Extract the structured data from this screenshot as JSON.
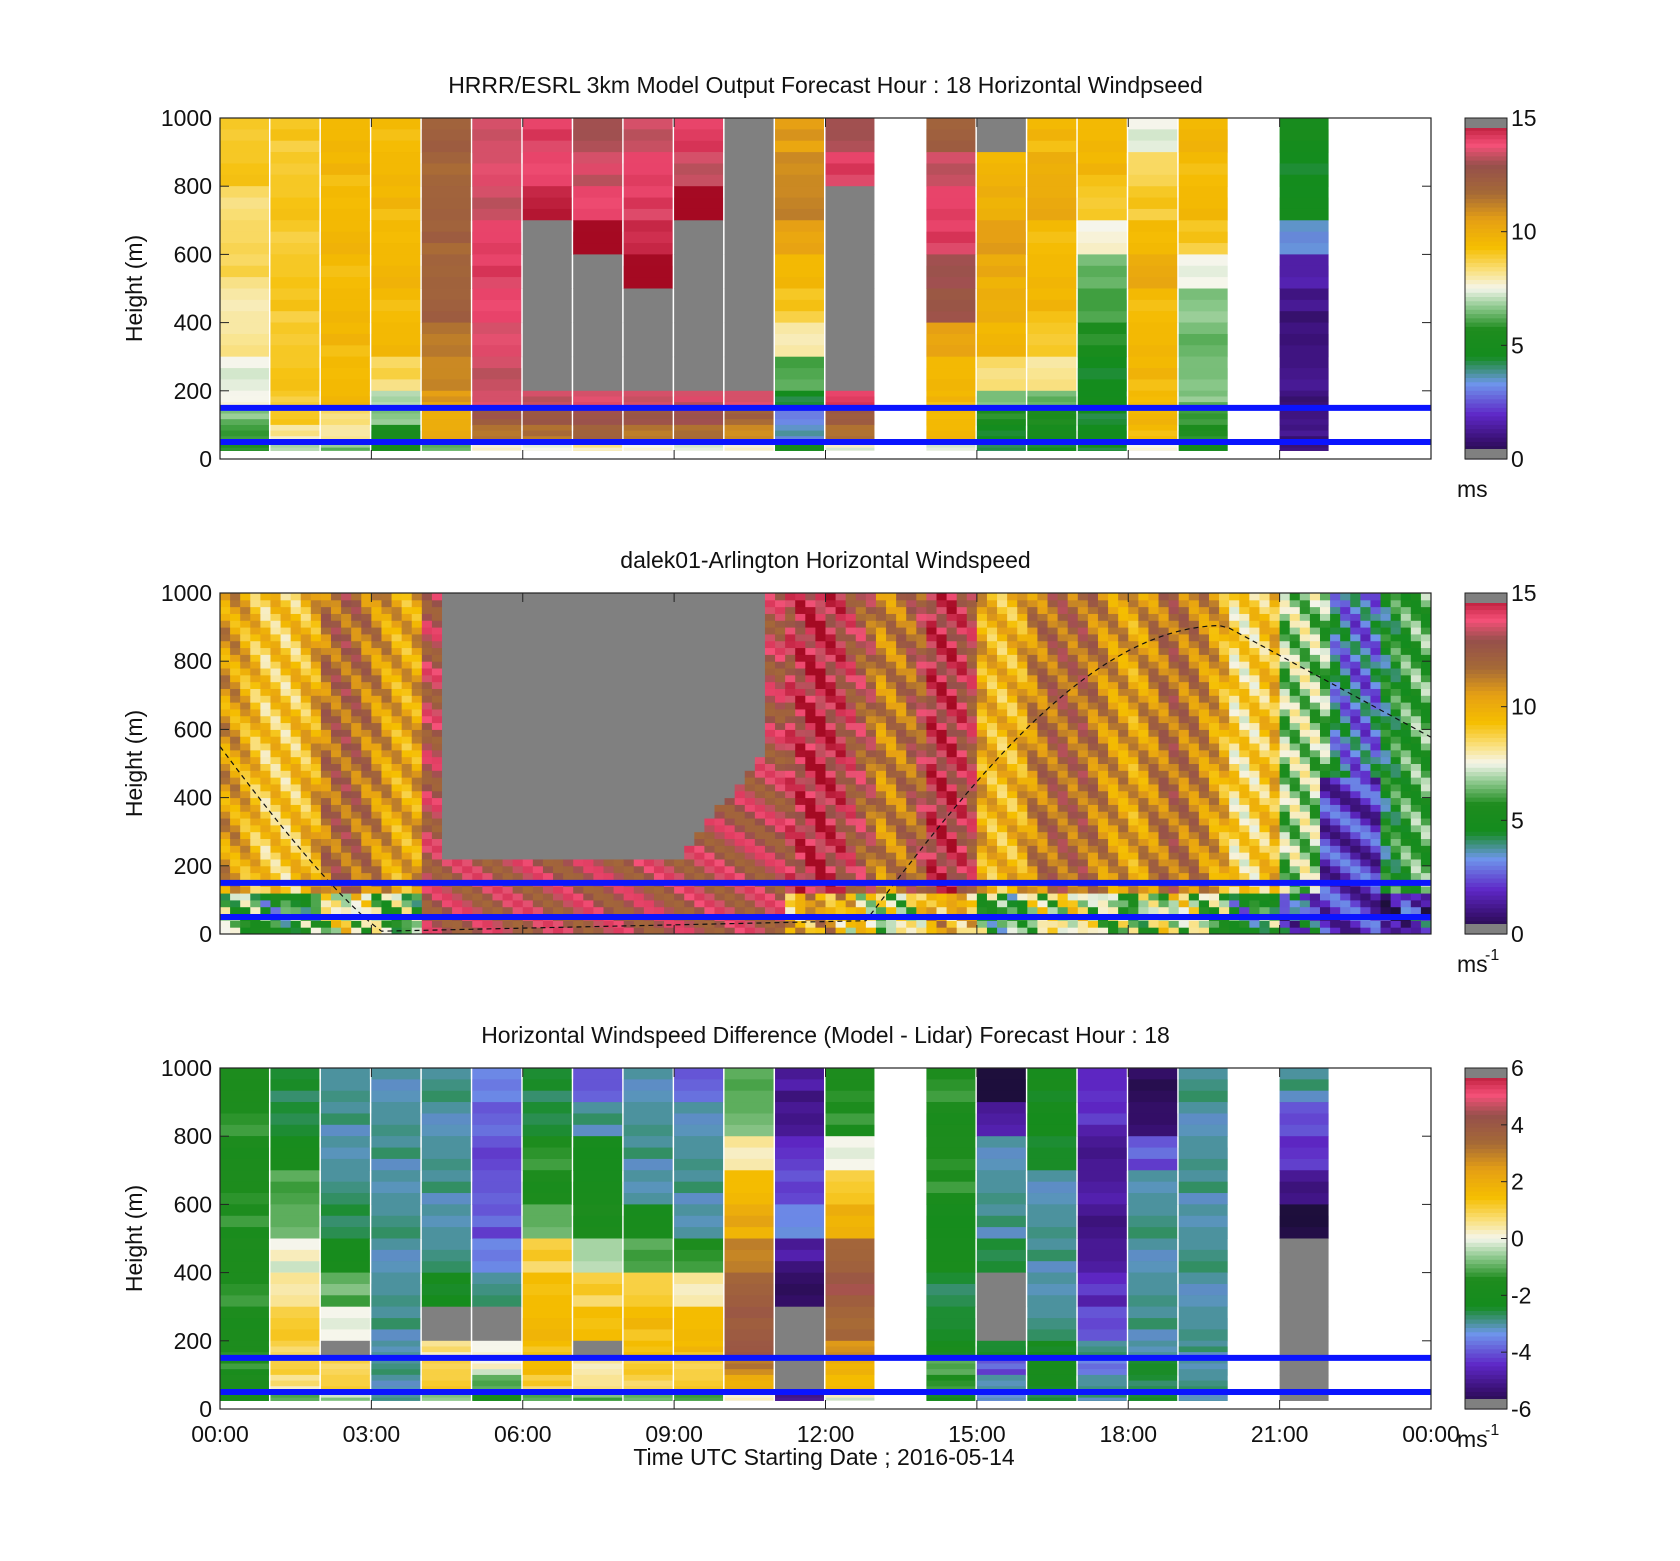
{
  "figure": {
    "xlabel": "Time UTC  Starting Date ; 2016-05-14",
    "xticks": [
      "00:00",
      "03:00",
      "06:00",
      "09:00",
      "12:00",
      "15:00",
      "18:00",
      "21:00",
      "00:00"
    ],
    "ylabel": "Height (m)",
    "yticks": [
      "0",
      "200",
      "400",
      "600",
      "800",
      "1000"
    ],
    "reference_lines_m": [
      150,
      50
    ],
    "reference_line_color": "#0a14ff"
  },
  "chart_data": [
    {
      "type": "heatmap",
      "title": "HRRR/ESRL 3km Model Output   Forecast Hour : 18 Horizontal Windpseed",
      "xlim_hours": [
        0,
        24
      ],
      "ylim": [
        0,
        1000
      ],
      "colorbar": {
        "ticks": [
          "15",
          "10",
          "5",
          "0"
        ],
        "unit": "ms",
        "unit_sup": "",
        "range": [
          0,
          15
        ]
      },
      "column_hours": [
        0,
        1,
        2,
        3,
        4,
        5,
        6,
        7,
        8,
        9,
        10,
        11,
        12,
        13,
        14,
        15,
        16,
        17,
        18,
        19,
        20,
        21,
        22,
        23
      ],
      "level_tops_m": [
        1000,
        900,
        800,
        700,
        600,
        500,
        400,
        300,
        200,
        150,
        100,
        50
      ],
      "values": [
        [
          9,
          9,
          9.5,
          9.5,
          12,
          13.5,
          14,
          13,
          13.5,
          14,
          null,
          10.5,
          13,
          null,
          12,
          null,
          9.5,
          9.5,
          7.5,
          9.5,
          null,
          5,
          null,
          null
        ],
        [
          9,
          9,
          9.5,
          9.5,
          12,
          13.5,
          14,
          13.5,
          14,
          13.5,
          null,
          11,
          14,
          null,
          13.5,
          9.5,
          10,
          9.5,
          8.5,
          9.5,
          null,
          4.5,
          null,
          null
        ],
        [
          8.5,
          9,
          9.5,
          9.5,
          12,
          13.5,
          14.5,
          14,
          14,
          15,
          null,
          11,
          null,
          null,
          14,
          10,
          10,
          9,
          9,
          9.5,
          null,
          4.5,
          null,
          null
        ],
        [
          8.5,
          9,
          9.5,
          9.5,
          12,
          14,
          null,
          15,
          14.5,
          null,
          null,
          10.5,
          null,
          null,
          14,
          10.5,
          9.5,
          7.5,
          9.5,
          9,
          null,
          3.5,
          null,
          null
        ],
        [
          8.5,
          9,
          9.5,
          9.5,
          12,
          14,
          null,
          null,
          15,
          null,
          null,
          9.5,
          null,
          null,
          13,
          10,
          9.5,
          6.5,
          10,
          7.5,
          null,
          1.5,
          null,
          null
        ],
        [
          8,
          9,
          9.5,
          9.5,
          12,
          14,
          null,
          null,
          null,
          null,
          null,
          9,
          null,
          null,
          12.5,
          10,
          9.5,
          6,
          9.5,
          6.5,
          null,
          1,
          null,
          null
        ],
        [
          8,
          9,
          9.5,
          9.5,
          11.5,
          13.5,
          null,
          null,
          null,
          null,
          null,
          8,
          null,
          null,
          10.5,
          9.5,
          9,
          5.5,
          9.5,
          6.5,
          null,
          1,
          null,
          null
        ],
        [
          7.5,
          9,
          9.5,
          8.5,
          11,
          13.5,
          null,
          null,
          null,
          null,
          null,
          6,
          null,
          null,
          9.5,
          8.5,
          8,
          4.5,
          9.5,
          6.5,
          null,
          1,
          null,
          null
        ],
        [
          7.5,
          9,
          9.5,
          7,
          10.5,
          13.5,
          13.5,
          13.5,
          13.5,
          13.5,
          13.5,
          4.5,
          14,
          null,
          9.5,
          6.5,
          6.5,
          4.5,
          9.5,
          6.5,
          null,
          1,
          null,
          null
        ],
        [
          6.5,
          9,
          8.5,
          6.5,
          10,
          12.5,
          12.5,
          13,
          12.5,
          13,
          12,
          3,
          12.5,
          null,
          9.5,
          5.5,
          5.5,
          4.5,
          9.5,
          6,
          null,
          1,
          null,
          null
        ],
        [
          6,
          8,
          8,
          5.5,
          10,
          11.5,
          11.5,
          12,
          11.5,
          11.5,
          11,
          3.5,
          11.5,
          null,
          9.5,
          4.5,
          5,
          4.5,
          9.5,
          5.5,
          null,
          1,
          null,
          null
        ],
        [
          5.5,
          7,
          6.5,
          5,
          6.5,
          7.5,
          7.5,
          8,
          7.5,
          7.5,
          7.5,
          5,
          7.5,
          null,
          7.5,
          4,
          4.5,
          4.5,
          7.5,
          5,
          null,
          1,
          null,
          null
        ]
      ]
    },
    {
      "type": "heatmap",
      "title": "dalek01-Arlington  Horizontal Windspeed",
      "xlim_hours": [
        0,
        24
      ],
      "ylim": [
        0,
        1000
      ],
      "colorbar": {
        "ticks": [
          "15",
          "10",
          "5",
          "0"
        ],
        "unit": "ms",
        "unit_sup": "-1",
        "range": [
          0,
          15
        ]
      },
      "description_values": {
        "background_by_hour": [
          9.5,
          10,
          11,
          11,
          13,
          null,
          null,
          null,
          null,
          null,
          13.5,
          13.5,
          13,
          12,
          13,
          10.5,
          11,
          11.5,
          11,
          10.5,
          9.5,
          6,
          4,
          5
        ],
        "no_data_region": {
          "start_hour": 4.3,
          "end_hour": 10.7,
          "bottom_m": 220,
          "dip_bottom_m": 200
        }
      },
      "overlay_curve": {
        "style": "dashed",
        "color": "#111111",
        "peak_hour": 19.9,
        "peak_m": 905,
        "zero_hours": [
          3.3,
          12.6
        ]
      }
    },
    {
      "type": "heatmap",
      "title": "Horizontal Windspeed Difference (Model - Lidar) Forecast Hour : 18",
      "xlim_hours": [
        0,
        24
      ],
      "ylim": [
        0,
        1000
      ],
      "colorbar": {
        "ticks": [
          "6",
          "4",
          "2",
          "0",
          "-2",
          "-4",
          "-6"
        ],
        "unit": "ms",
        "unit_sup": "-1",
        "range": [
          -6,
          6
        ]
      },
      "column_hours": [
        0,
        1,
        2,
        3,
        4,
        5,
        6,
        7,
        8,
        9,
        10,
        11,
        12,
        13,
        14,
        15,
        16,
        17,
        18,
        19,
        20,
        21,
        22,
        23
      ],
      "level_tops_m": [
        1000,
        900,
        800,
        700,
        600,
        500,
        400,
        300,
        200,
        150,
        100,
        50
      ],
      "values": [
        [
          -1.5,
          -2.5,
          -3,
          -3,
          -3,
          -3.5,
          -2.5,
          -4,
          -3,
          -4,
          -1,
          -5,
          -1.5,
          null,
          -1.5,
          -6,
          -2,
          -4.5,
          -5.5,
          -3,
          null,
          -3,
          null,
          null
        ],
        [
          -1.5,
          -2.5,
          -3,
          -3,
          -3,
          -4,
          -2.5,
          -3,
          -3,
          -3,
          -1,
          -5,
          -1.5,
          null,
          -1.5,
          -5,
          -2,
          -4.5,
          -5.5,
          -3,
          null,
          -4,
          null,
          null
        ],
        [
          -1.5,
          -2,
          -3,
          -3,
          -3,
          -4,
          -1.5,
          -2,
          -3,
          -3,
          0.5,
          -4.5,
          0,
          null,
          -1.5,
          -3,
          -2.5,
          -5,
          -4,
          -3,
          null,
          -4.5,
          null,
          null
        ],
        [
          -1.5,
          -1,
          -3,
          -3,
          -3,
          -4,
          -1.5,
          -2,
          -3,
          -3,
          1.5,
          -4,
          1,
          null,
          -1.5,
          -3,
          -3,
          -5,
          -3,
          -3,
          null,
          -5,
          null,
          null
        ],
        [
          -1.5,
          -1,
          -2.5,
          -3,
          -3,
          -4,
          -1,
          -1.5,
          -2,
          -3,
          2,
          -3.5,
          2,
          null,
          -2,
          -3,
          -3,
          -5,
          -3,
          -3,
          null,
          -6,
          null,
          null
        ],
        [
          -1.5,
          0,
          -2,
          -3,
          -3,
          -3.5,
          1,
          -0.5,
          -1,
          -1.5,
          3,
          -5,
          3.5,
          null,
          -2,
          -2.5,
          -3,
          -5,
          -3,
          -3,
          null,
          null,
          null,
          null
        ],
        [
          -1.5,
          0.5,
          -1,
          -3,
          -2,
          -3,
          1.5,
          1,
          1,
          0.5,
          3.5,
          -5.5,
          4,
          null,
          -2.5,
          null,
          -3,
          -4.5,
          -3,
          -3,
          null,
          null,
          null,
          null
        ],
        [
          -1.5,
          1,
          0,
          -3,
          null,
          null,
          1.5,
          1.5,
          1.5,
          1.5,
          4,
          null,
          3.5,
          null,
          -2.5,
          null,
          -3,
          -4,
          -3,
          -3,
          null,
          null,
          null,
          null
        ],
        [
          -1.5,
          1,
          null,
          -3,
          0.5,
          0,
          1.5,
          null,
          1.5,
          1.5,
          4,
          null,
          2.5,
          null,
          -2,
          -2.5,
          -2,
          -3,
          -3,
          -3,
          null,
          null,
          null,
          null
        ],
        [
          -1.5,
          1,
          1,
          -3,
          1,
          0,
          1.5,
          0.5,
          1,
          1,
          3,
          null,
          2,
          null,
          -1,
          -4,
          -2,
          -3.5,
          -2.5,
          -3,
          null,
          null,
          null,
          null
        ],
        [
          -1.5,
          0.5,
          1,
          -3,
          1,
          -1,
          1,
          0.5,
          1,
          1,
          2,
          null,
          1.5,
          null,
          -1.5,
          -3,
          -2,
          -3,
          -2.5,
          -3,
          null,
          null,
          null,
          null
        ],
        [
          -2,
          -1,
          -0.5,
          -3,
          -0.5,
          -2,
          -1,
          -1,
          -1,
          -1,
          0,
          -5,
          0,
          null,
          -2,
          -3.5,
          -2.5,
          -3,
          -2.5,
          -3,
          null,
          null,
          null,
          null
        ]
      ]
    }
  ]
}
